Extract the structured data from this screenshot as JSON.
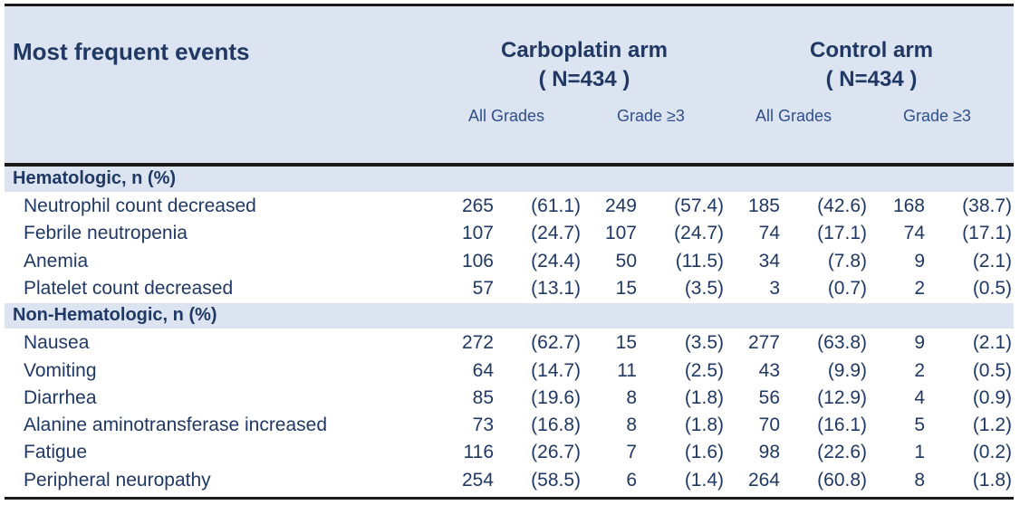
{
  "header": {
    "title": "Most frequent events",
    "arms": [
      {
        "name": "Carboplatin arm",
        "n": "( N=434 )"
      },
      {
        "name": "Control arm",
        "n": "( N=434 )"
      }
    ],
    "subheaders": [
      "All Grades",
      "Grade ≥3",
      "All Grades",
      "Grade ≥3"
    ]
  },
  "sections": [
    {
      "label": "Hematologic, n (%)",
      "rows": [
        {
          "label": "Neutrophil count decreased",
          "cells": [
            "265",
            "(61.1)",
            "249",
            "(57.4)",
            "185",
            "(42.6)",
            "168",
            "(38.7)"
          ]
        },
        {
          "label": "Febrile neutropenia",
          "cells": [
            "107",
            "(24.7)",
            "107",
            "(24.7)",
            "74",
            "(17.1)",
            "74",
            "(17.1)"
          ]
        },
        {
          "label": "Anemia",
          "cells": [
            "106",
            "(24.4)",
            "50",
            "(11.5)",
            "34",
            "(7.8)",
            "9",
            "(2.1)"
          ]
        },
        {
          "label": "Platelet count decreased",
          "cells": [
            "57",
            "(13.1)",
            "15",
            "(3.5)",
            "3",
            "(0.7)",
            "2",
            "(0.5)"
          ]
        }
      ]
    },
    {
      "label": "Non-Hematologic, n (%)",
      "rows": [
        {
          "label": "Nausea",
          "cells": [
            "272",
            "(62.7)",
            "15",
            "(3.5)",
            "277",
            "(63.8)",
            "9",
            "(2.1)"
          ]
        },
        {
          "label": "Vomiting",
          "cells": [
            "64",
            "(14.7)",
            "11",
            "(2.5)",
            "43",
            "(9.9)",
            "2",
            "(0.5)"
          ]
        },
        {
          "label": "Diarrhea",
          "cells": [
            "85",
            "(19.6)",
            "8",
            "(1.8)",
            "56",
            "(12.9)",
            "4",
            "(0.9)"
          ]
        },
        {
          "label": "Alanine aminotransferase increased",
          "cells": [
            "73",
            "(16.8)",
            "8",
            "(1.8)",
            "70",
            "(16.1)",
            "5",
            "(1.2)"
          ]
        },
        {
          "label": "Fatigue",
          "cells": [
            "116",
            "(26.7)",
            "7",
            "(1.6)",
            "98",
            "(22.6)",
            "1",
            "(0.2)"
          ]
        },
        {
          "label": "Peripheral neuropathy",
          "cells": [
            "254",
            "(58.5)",
            "6",
            "(1.4)",
            "264",
            "(60.8)",
            "8",
            "(1.8)"
          ]
        }
      ]
    }
  ]
}
